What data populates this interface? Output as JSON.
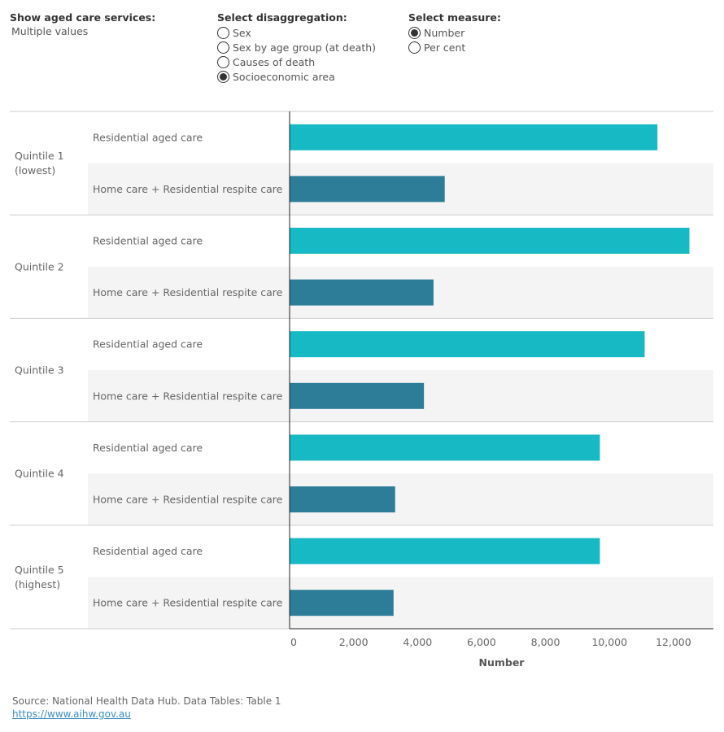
{
  "filters": {
    "services": {
      "title": "Show aged care services:",
      "value": "Multiple values"
    },
    "disaggregation": {
      "title": "Select disaggregation:",
      "options": [
        {
          "label": "Sex",
          "checked": false
        },
        {
          "label": "Sex by age group (at death)",
          "checked": false
        },
        {
          "label": "Causes of death",
          "checked": false
        },
        {
          "label": "Socioeconomic area",
          "checked": true
        }
      ]
    },
    "measure": {
      "title": "Select measure:",
      "options": [
        {
          "label": "Number",
          "checked": true
        },
        {
          "label": "Per cent",
          "checked": false
        }
      ]
    }
  },
  "chart_data": {
    "type": "bar",
    "orientation": "horizontal",
    "groups": [
      {
        "label": [
          "Quintile 1",
          "(lowest)"
        ],
        "bars": [
          {
            "name": "Residential aged care",
            "value": 11500
          },
          {
            "name": "Home care + Residential respite care",
            "value": 4850
          }
        ]
      },
      {
        "label": [
          "Quintile 2"
        ],
        "bars": [
          {
            "name": "Residential aged care",
            "value": 12500
          },
          {
            "name": "Home care + Residential respite care",
            "value": 4500
          }
        ]
      },
      {
        "label": [
          "Quintile 3"
        ],
        "bars": [
          {
            "name": "Residential aged care",
            "value": 11100
          },
          {
            "name": "Home care + Residential respite care",
            "value": 4200
          }
        ]
      },
      {
        "label": [
          "Quintile 4"
        ],
        "bars": [
          {
            "name": "Residential aged care",
            "value": 9700
          },
          {
            "name": "Home care + Residential respite care",
            "value": 3300
          }
        ]
      },
      {
        "label": [
          "Quintile 5",
          "(highest)"
        ],
        "bars": [
          {
            "name": "Residential aged care",
            "value": 9700
          },
          {
            "name": "Home care + Residential respite care",
            "value": 3250
          }
        ]
      }
    ],
    "xlim": [
      0,
      13250
    ],
    "xticks": [
      0,
      2000,
      4000,
      6000,
      8000,
      10000,
      12000
    ],
    "xtick_labels": [
      "0",
      "2,000",
      "4,000",
      "6,000",
      "8,000",
      "10,000",
      "12,000"
    ],
    "xlabel": "Number",
    "colors": {
      "Residential aged care": "#17b9c4",
      "Home care + Residential respite care": "#2d7d99"
    }
  },
  "footer": {
    "source": "Source: National Health Data Hub. Data Tables: Table 1",
    "link": "https://www.aihw.gov.au"
  }
}
